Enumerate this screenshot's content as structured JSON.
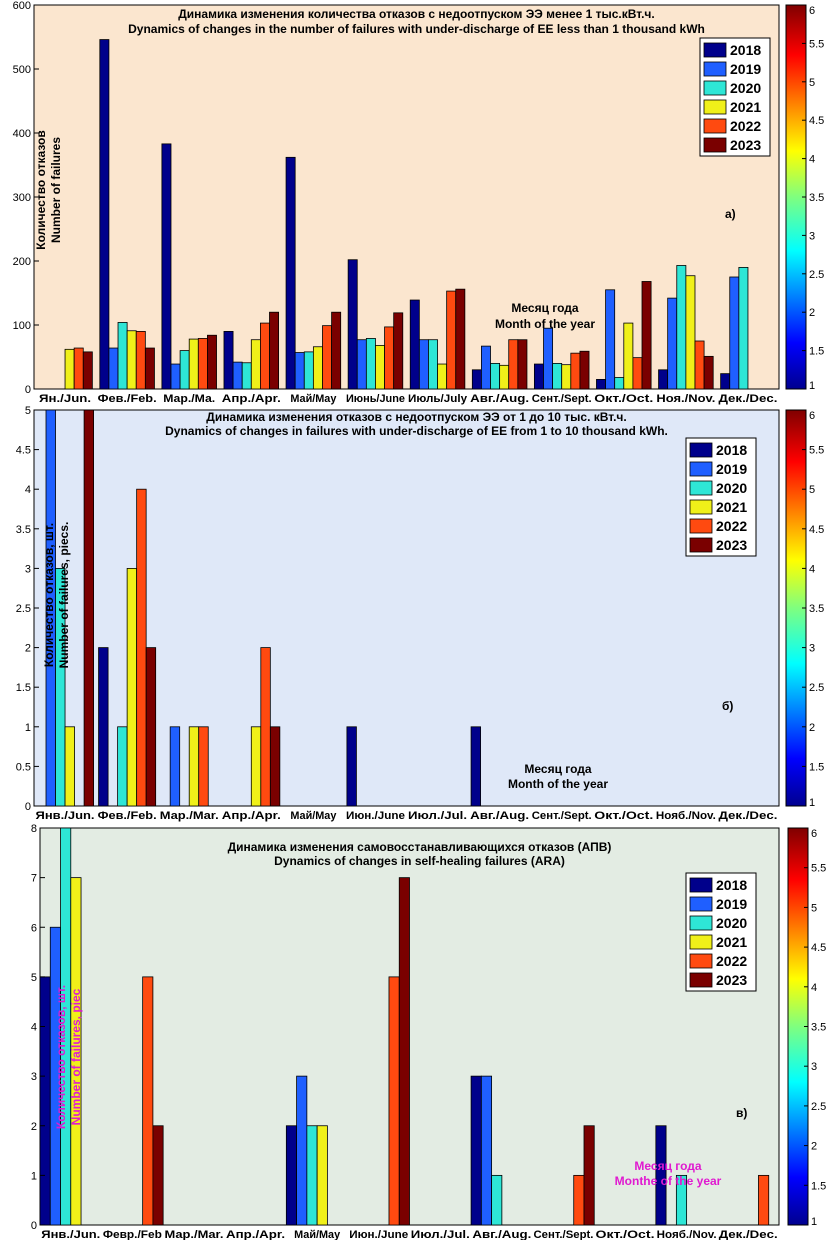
{
  "palette": [
    "#00008b",
    "#1f5fff",
    "#2ee6d6",
    "#f0f019",
    "#ff4a10",
    "#7a0000"
  ],
  "chart_data": [
    {
      "type": "bar",
      "title": "Динамика изменения количества отказов с недоотпуском ЭЭ менее 1 тыс.кВт.ч.",
      "subtitle": "Dynamics of changes in the number of failures with under-discharge of EE less than 1 thousand kWh",
      "ylabel_ru": "Количество отказов",
      "ylabel_en": "Number of failures",
      "xlabel_ru": "Месяц года",
      "xlabel_en": "Month of the year",
      "panel_label": "а)",
      "ylim": [
        0,
        600
      ],
      "yticks": [
        0,
        100,
        200,
        300,
        400,
        500,
        600
      ],
      "categories": [
        "Ян./Jun.",
        "Фев./Feb.",
        "Мар./Ма.",
        "Апр./Apr.",
        "Май/May",
        "Июнь/June",
        "Июль/July",
        "Авг./Aug.",
        "Сент./Sept.",
        "Окт./Oct.",
        "Ноя./Nov.",
        "Дек./Dec."
      ],
      "legend": [
        "2018",
        "2019",
        "2020",
        "2021",
        "2022",
        "2023"
      ],
      "colorbar_ticks": [
        "1",
        "1.5",
        "2",
        "2.5",
        "3",
        "3.5",
        "4",
        "4.5",
        "5",
        "5.5",
        "6"
      ],
      "series": [
        {
          "name": "2018",
          "values": [
            0,
            546,
            383,
            90,
            362,
            202,
            139,
            30,
            39,
            15,
            30,
            24
          ]
        },
        {
          "name": "2019",
          "values": [
            0,
            64,
            39,
            42,
            57,
            77,
            77,
            67,
            95,
            155,
            142,
            175
          ]
        },
        {
          "name": "2020",
          "values": [
            0,
            104,
            60,
            41,
            58,
            79,
            77,
            40,
            40,
            18,
            193,
            190
          ]
        },
        {
          "name": "2021",
          "values": [
            62,
            91,
            78,
            77,
            66,
            68,
            39,
            37,
            38,
            103,
            177,
            0
          ]
        },
        {
          "name": "2022",
          "values": [
            64,
            90,
            79,
            103,
            99,
            97,
            153,
            77,
            56,
            49,
            75,
            0
          ]
        },
        {
          "name": "2023",
          "values": [
            58,
            64,
            84,
            120,
            120,
            119,
            156,
            77,
            59,
            168,
            51,
            0
          ]
        }
      ]
    },
    {
      "type": "bar",
      "title": "Динамика изменения отказов с недоотпуском ЭЭ от 1 до 10 тыс. кВт.ч.",
      "subtitle": "Dynamics of changes in failures with under-discharge of EE from 1 to 10 thousand kWh.",
      "ylabel_ru": "Количество отказов, шт.",
      "ylabel_en": "Number of failures, piecs.",
      "xlabel_ru": "Месяц года",
      "xlabel_en": "Month of the year",
      "panel_label": "б)",
      "ylim": [
        0,
        5
      ],
      "yticks": [
        0,
        0.5,
        1,
        1.5,
        2,
        2.5,
        3,
        3.5,
        4,
        4.5,
        5
      ],
      "categories": [
        "Янв./Jun.",
        "Фев./Feb.",
        "Мар./Mar.",
        "Апр./Apr.",
        "Май/May",
        "Июн./June",
        "Июл./Jul.",
        "Авг./Aug.",
        "Сент./Sept.",
        "Окт./Oct.",
        "Нояб./Nov.",
        "Дек./Dec."
      ],
      "legend": [
        "2018",
        "2019",
        "2020",
        "2021",
        "2022",
        "2023"
      ],
      "colorbar_ticks": [
        "1",
        "1.5",
        "2",
        "2.5",
        "3",
        "3.5",
        "4",
        "4.5",
        "5",
        "5.5",
        "6"
      ],
      "series": [
        {
          "name": "2018",
          "values": [
            0,
            2,
            0,
            0,
            0,
            1,
            0,
            1,
            0,
            0,
            0,
            0
          ]
        },
        {
          "name": "2019",
          "values": [
            5,
            0,
            1,
            0,
            0,
            0,
            0,
            0,
            0,
            0,
            0,
            0
          ]
        },
        {
          "name": "2020",
          "values": [
            3,
            1,
            0,
            0,
            0,
            0,
            0,
            0,
            0,
            0,
            0,
            0
          ]
        },
        {
          "name": "2021",
          "values": [
            1,
            3,
            1,
            1,
            0,
            0,
            0,
            0,
            0,
            0,
            0,
            0
          ]
        },
        {
          "name": "2022",
          "values": [
            0,
            4,
            1,
            2,
            0,
            0,
            0,
            0,
            0,
            0,
            0,
            0
          ]
        },
        {
          "name": "2023",
          "values": [
            5,
            2,
            0,
            1,
            0,
            0,
            0,
            0,
            0,
            0,
            0,
            0
          ]
        }
      ]
    },
    {
      "type": "bar",
      "title": "Динамика изменения самовосстанавливающихся отказов (АПВ)",
      "subtitle": "Dynamics of changes in self-healing failures (ARA)",
      "ylabel_ru": "Количество отказов, шт.",
      "ylabel_en": "Number of failures, piec",
      "xlabel_ru": "Месяц года",
      "xlabel_en": "Monthe of the year",
      "panel_label": "в)",
      "ylim": [
        0,
        8
      ],
      "yticks": [
        0,
        1,
        2,
        3,
        4,
        5,
        6,
        7,
        8
      ],
      "categories": [
        "Янв./Jun.",
        "Февр./Feb",
        "Мар./Mar.",
        "Апр./Apr.",
        "Май/May",
        "Июн./June",
        "Июл./Jul.",
        "Авг./Aug.",
        "Сент./Sept.",
        "Окт./Oct.",
        "Нояб./Nov.",
        "Дек./Dec."
      ],
      "legend": [
        "2018",
        "2019",
        "2020",
        "2021",
        "2022",
        "2023"
      ],
      "colorbar_ticks": [
        "1",
        "1.5",
        "2",
        "2.5",
        "3",
        "3.5",
        "4",
        "4.5",
        "5",
        "5.5",
        "6"
      ],
      "series": [
        {
          "name": "2018",
          "values": [
            5,
            0,
            0,
            0,
            2,
            0,
            0,
            3,
            0,
            0,
            2,
            0
          ]
        },
        {
          "name": "2019",
          "values": [
            6,
            0,
            0,
            0,
            3,
            0,
            0,
            3,
            0,
            0,
            0,
            0
          ]
        },
        {
          "name": "2020",
          "values": [
            8,
            0,
            0,
            0,
            2,
            0,
            0,
            1,
            0,
            0,
            1,
            0
          ]
        },
        {
          "name": "2021",
          "values": [
            7,
            0,
            0,
            0,
            2,
            0,
            0,
            0,
            0,
            0,
            0,
            0
          ]
        },
        {
          "name": "2022",
          "values": [
            0,
            5,
            0,
            0,
            0,
            5,
            0,
            0,
            1,
            0,
            0,
            1
          ]
        },
        {
          "name": "2023",
          "values": [
            0,
            2,
            0,
            0,
            0,
            7,
            0,
            0,
            2,
            0,
            0,
            0
          ]
        }
      ]
    }
  ]
}
